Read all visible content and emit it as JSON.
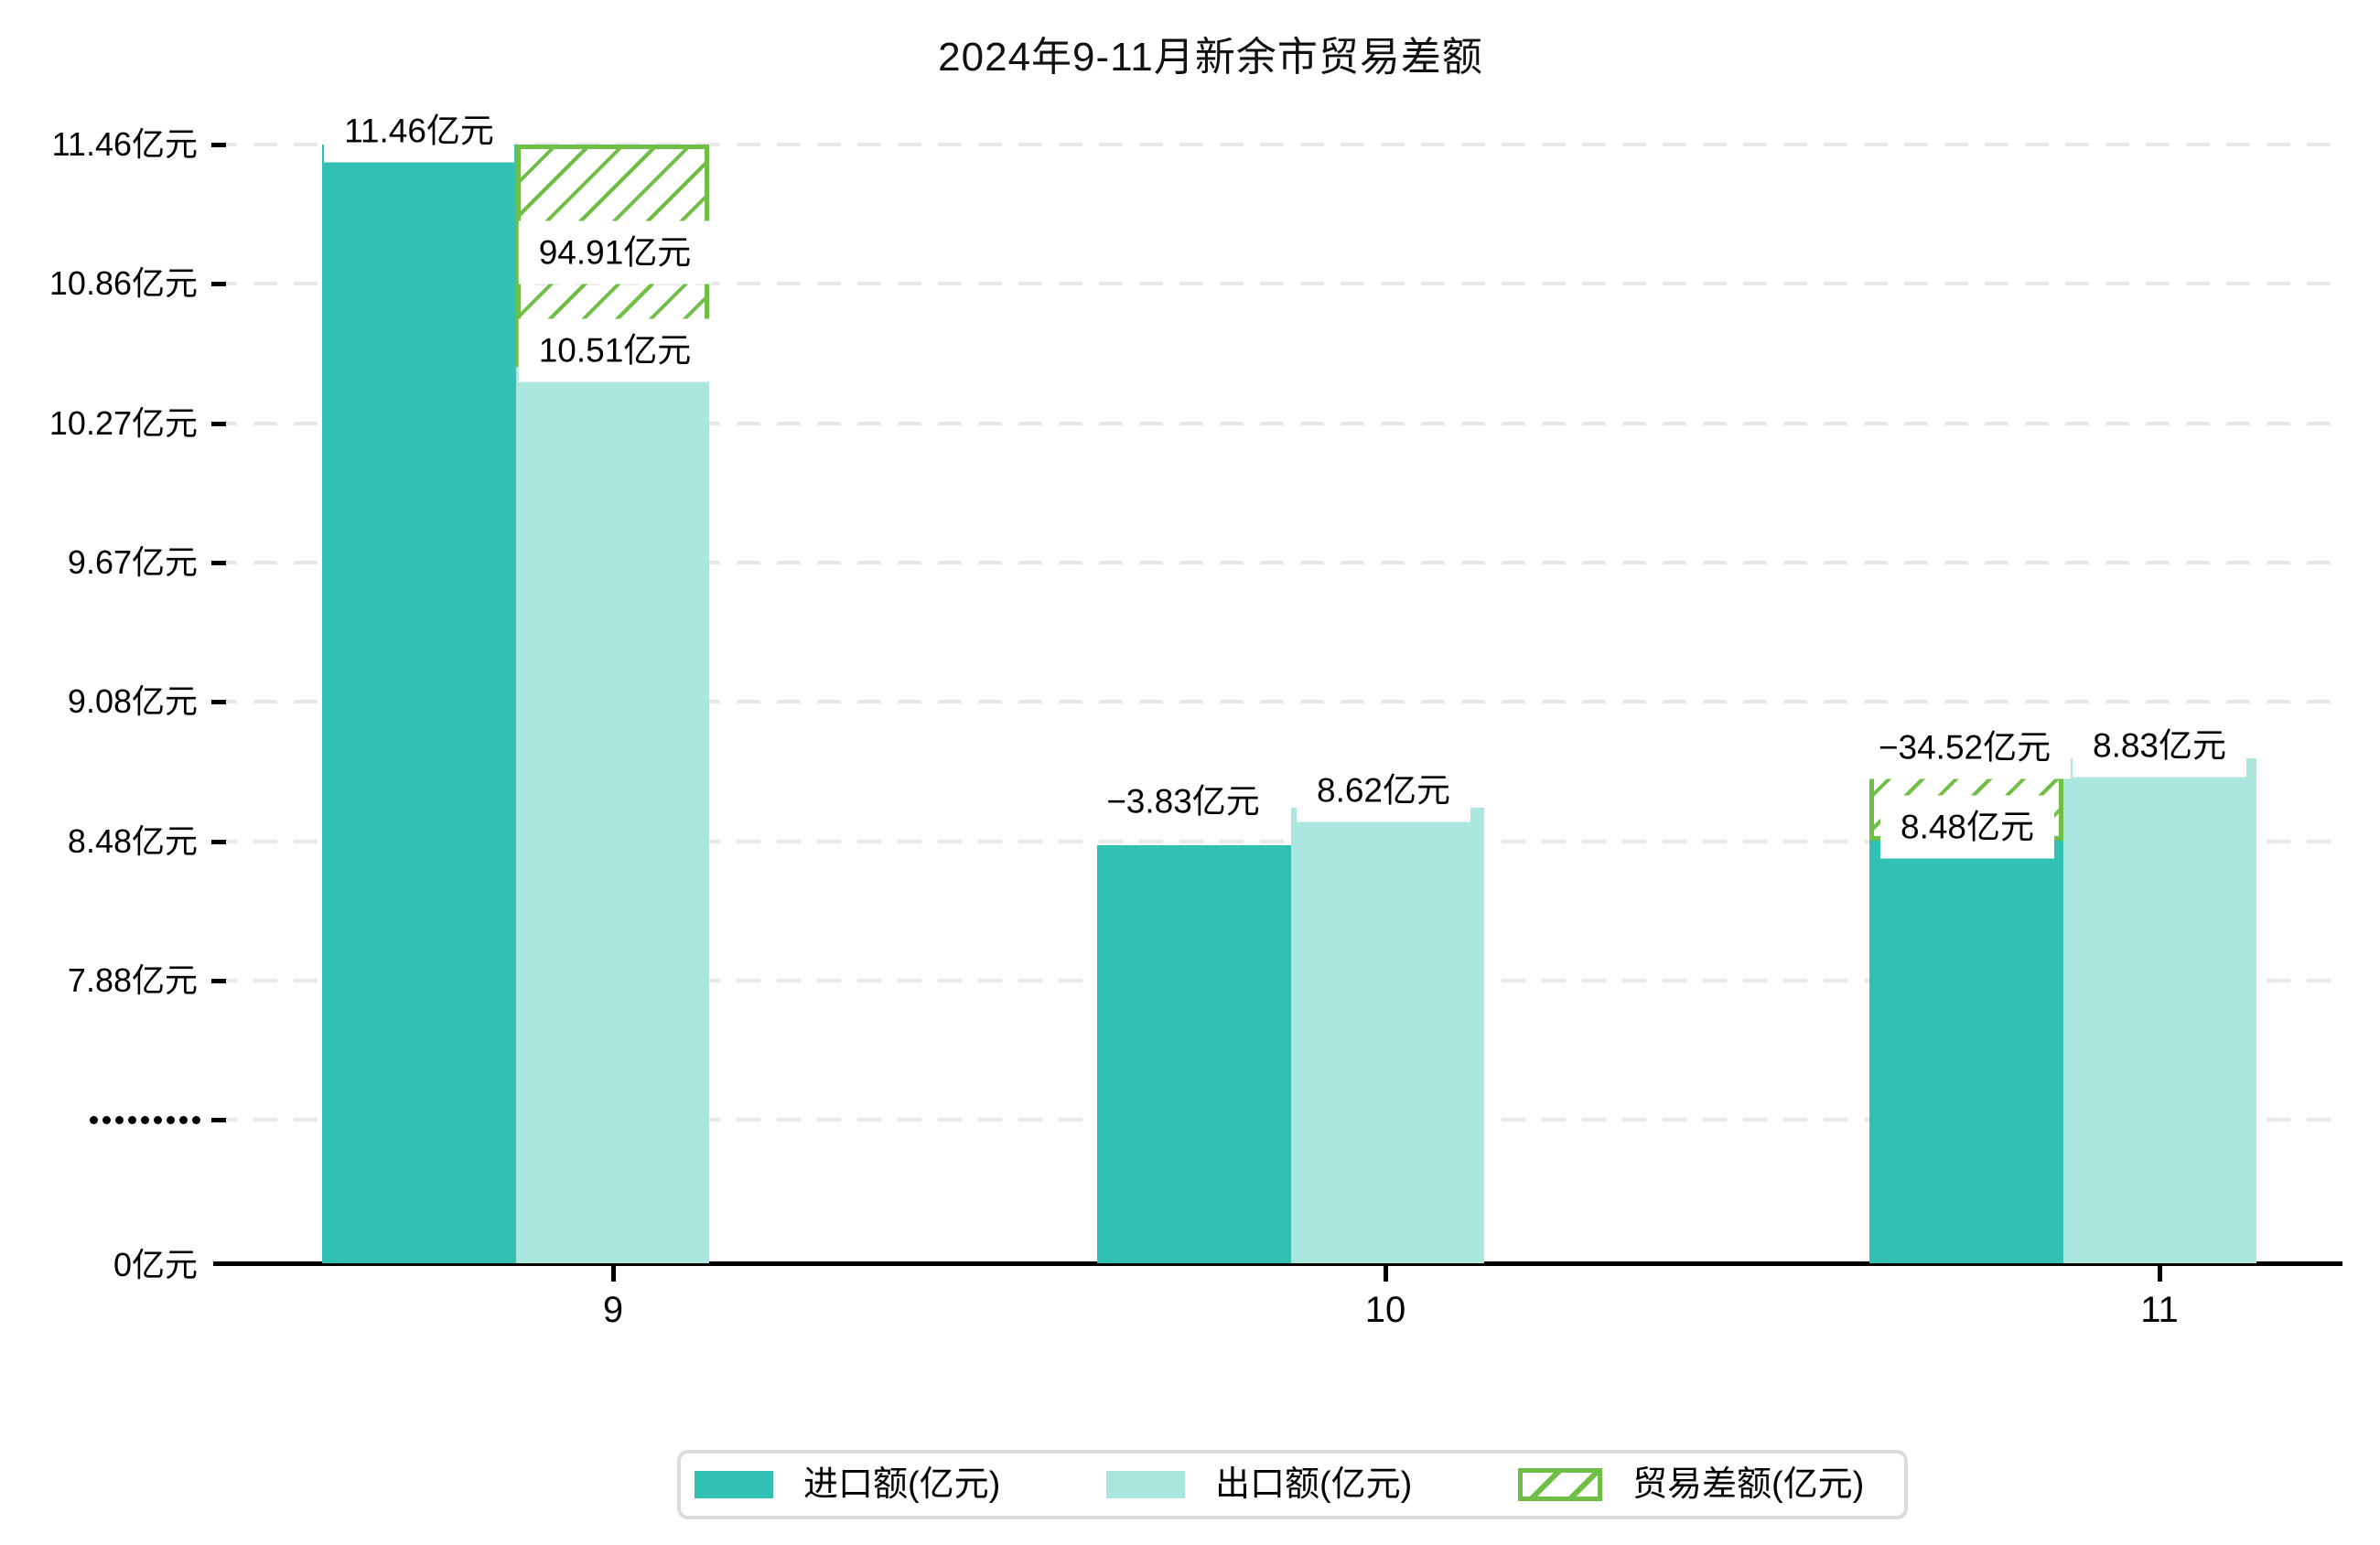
{
  "title": "2024年9-11月新余市贸易差额",
  "y_axis": {
    "tick_labels": [
      "11.46亿元",
      "10.86亿元",
      "10.27亿元",
      "9.67亿元",
      "9.08亿元",
      "8.48亿元",
      "7.88亿元"
    ],
    "break_symbol": "•••••••••",
    "zero_label": "0亿元"
  },
  "x_axis": {
    "tick_labels": [
      "9",
      "10",
      "11"
    ]
  },
  "overlay_labels": {
    "m9": [
      "11.46亿元",
      "94.91亿元",
      "10.51亿元"
    ],
    "m10": [
      "−3.83亿元",
      "8.62亿元"
    ],
    "m11": [
      "−34.52亿元",
      "8.48亿元",
      "8.83亿元"
    ]
  },
  "legend": {
    "items": [
      {
        "label": "进口额(亿元)",
        "swatch": "solid-teal"
      },
      {
        "label": "出口额(亿元)",
        "swatch": "solid-cyan"
      },
      {
        "label": "贸易差额(亿元)",
        "swatch": "green-hatch"
      }
    ]
  },
  "colors": {
    "import_bar": "#31C1B4",
    "export_bar": "#ABE6DF",
    "balance_hatch": "#6FBE45",
    "gridline": "#E8E8E8",
    "axis": "#000000",
    "label_bg": "#FFFFFF",
    "legend_border": "#DBDBDB"
  },
  "chart_data": {
    "type": "bar",
    "title": "2024年9-11月新余市贸易差额",
    "categories": [
      "9",
      "10",
      "11"
    ],
    "series": [
      {
        "name": "进口额(亿元)",
        "values": [
          11.46,
          8.46,
          8.48
        ]
      },
      {
        "name": "出口额(亿元)",
        "values": [
          10.51,
          8.62,
          8.83
        ]
      },
      {
        "name": "贸易差额(亿元)",
        "values": [
          94.91,
          -3.83,
          -34.52
        ],
        "style": "hatch"
      }
    ],
    "bar_labels": {
      "import": [
        "11.46亿元",
        null,
        "8.48亿元"
      ],
      "export": [
        "10.51亿元",
        "8.62亿元",
        "8.83亿元"
      ],
      "balance": [
        "94.91亿元",
        "−3.83亿元",
        "−34.52亿元"
      ]
    },
    "ylabel": "亿元",
    "y_ticks": [
      11.46,
      10.86,
      10.27,
      9.67,
      9.08,
      8.48,
      7.88
    ],
    "y_axis_break_to_zero": true,
    "grid": "dashed-horizontal",
    "legend_position": "bottom"
  }
}
